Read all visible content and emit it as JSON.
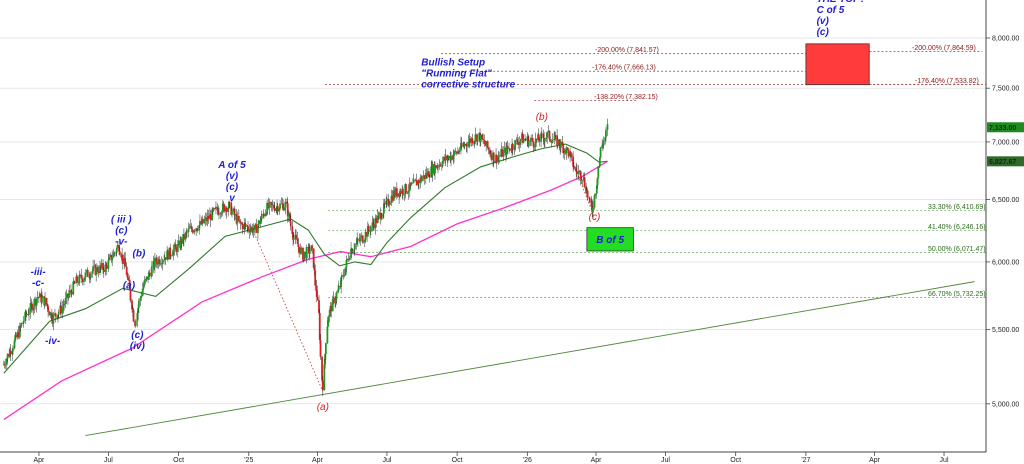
{
  "chart_data": {
    "type": "candlestick",
    "title": "",
    "xlabel": "",
    "ylabel": "",
    "ylim": [
      4700,
      8400
    ],
    "y_scale": "log",
    "x_tick_labels": [
      "Apr",
      "Jul",
      "Oct",
      "'25",
      "Apr",
      "Jul",
      "Oct",
      "'26",
      "Apr",
      "Jul",
      "Oct",
      "'27",
      "Apr",
      "Jul"
    ],
    "x_ticks": [
      {
        "label": "Apr",
        "date": "2024-04-01"
      },
      {
        "label": "Jul",
        "date": "2024-07-01"
      },
      {
        "label": "Oct",
        "date": "2024-10-01"
      },
      {
        "label": "'25",
        "date": "2025-01-01"
      },
      {
        "label": "Apr",
        "date": "2025-04-01"
      },
      {
        "label": "Jul",
        "date": "2025-07-01"
      },
      {
        "label": "Oct",
        "date": "2025-10-01"
      },
      {
        "label": "'26",
        "date": "2026-01-01"
      },
      {
        "label": "Apr",
        "date": "2026-04-01"
      },
      {
        "label": "Jul",
        "date": "2026-07-01"
      },
      {
        "label": "Oct",
        "date": "2026-10-01"
      },
      {
        "label": "'27",
        "date": "2027-01-01"
      },
      {
        "label": "Apr",
        "date": "2027-04-01"
      },
      {
        "label": "Jul",
        "date": "2027-07-01"
      }
    ],
    "y_ticks": [
      {
        "label": "5,000.00",
        "value": 5000
      },
      {
        "label": "5,500.00",
        "value": 5500
      },
      {
        "label": "6,000.00",
        "value": 6000
      },
      {
        "label": "6,500.00",
        "value": 6500
      },
      {
        "label": "7,000.00",
        "value": 7000
      },
      {
        "label": "7,500.00",
        "value": 7500
      },
      {
        "label": "8,000.00",
        "value": 8000
      }
    ],
    "price_path": [
      [
        "2024-02-15",
        5260
      ],
      [
        "2024-03-01",
        5420
      ],
      [
        "2024-03-15",
        5600
      ],
      [
        "2024-03-31",
        5740
      ],
      [
        "2024-04-10",
        5700
      ],
      [
        "2024-04-19",
        5580
      ],
      [
        "2024-05-01",
        5650
      ],
      [
        "2024-05-20",
        5850
      ],
      [
        "2024-06-10",
        5930
      ],
      [
        "2024-06-28",
        5960
      ],
      [
        "2024-07-15",
        6130
      ],
      [
        "2024-07-24",
        5950
      ],
      [
        "2024-08-05",
        5550
      ],
      [
        "2024-08-15",
        5800
      ],
      [
        "2024-09-01",
        6000
      ],
      [
        "2024-09-15",
        6050
      ],
      [
        "2024-10-01",
        6120
      ],
      [
        "2024-10-15",
        6250
      ],
      [
        "2024-11-01",
        6300
      ],
      [
        "2024-11-20",
        6410
      ],
      [
        "2024-12-06",
        6450
      ],
      [
        "2024-12-20",
        6300
      ],
      [
        "2025-01-10",
        6250
      ],
      [
        "2025-01-25",
        6430
      ],
      [
        "2025-02-19",
        6460
      ],
      [
        "2025-03-01",
        6200
      ],
      [
        "2025-03-13",
        6050
      ],
      [
        "2025-03-25",
        6100
      ],
      [
        "2025-04-03",
        5600
      ],
      [
        "2025-04-08",
        5080
      ],
      [
        "2025-04-15",
        5600
      ],
      [
        "2025-04-30",
        5800
      ],
      [
        "2025-05-15",
        6100
      ],
      [
        "2025-06-01",
        6200
      ],
      [
        "2025-06-20",
        6350
      ],
      [
        "2025-07-10",
        6550
      ],
      [
        "2025-08-01",
        6600
      ],
      [
        "2025-08-20",
        6700
      ],
      [
        "2025-09-10",
        6820
      ],
      [
        "2025-09-30",
        6900
      ],
      [
        "2025-10-15",
        7000
      ],
      [
        "2025-10-29",
        7060
      ],
      [
        "2025-11-20",
        6850
      ],
      [
        "2025-12-10",
        6950
      ],
      [
        "2025-12-24",
        7030
      ],
      [
        "2026-01-10",
        7000
      ],
      [
        "2026-01-28",
        7060
      ],
      [
        "2026-02-10",
        7000
      ],
      [
        "2026-02-25",
        6900
      ],
      [
        "2026-03-05",
        6750
      ],
      [
        "2026-03-15",
        6700
      ],
      [
        "2026-03-27",
        6400
      ],
      [
        "2026-04-01",
        6600
      ],
      [
        "2026-04-08",
        6950
      ],
      [
        "2026-04-14",
        7050
      ],
      [
        "2026-04-16",
        7133
      ]
    ],
    "moving_average_short": [
      [
        "2024-02-15",
        5200
      ],
      [
        "2024-04-15",
        5560
      ],
      [
        "2024-06-01",
        5650
      ],
      [
        "2024-07-20",
        5800
      ],
      [
        "2024-09-01",
        5740
      ],
      [
        "2024-10-15",
        5950
      ],
      [
        "2024-12-01",
        6200
      ],
      [
        "2025-01-20",
        6280
      ],
      [
        "2025-02-25",
        6340
      ],
      [
        "2025-03-20",
        6250
      ],
      [
        "2025-04-10",
        6060
      ],
      [
        "2025-04-30",
        5970
      ],
      [
        "2025-05-20",
        6000
      ],
      [
        "2025-06-10",
        5980
      ],
      [
        "2025-07-01",
        6150
      ],
      [
        "2025-08-01",
        6350
      ],
      [
        "2025-09-15",
        6600
      ],
      [
        "2025-11-01",
        6780
      ],
      [
        "2025-12-15",
        6870
      ],
      [
        "2026-01-20",
        6940
      ],
      [
        "2026-02-20",
        6980
      ],
      [
        "2026-03-20",
        6900
      ],
      [
        "2026-04-05",
        6820
      ],
      [
        "2026-04-16",
        6827.67
      ]
    ],
    "moving_average_long": [
      [
        "2024-02-15",
        4900
      ],
      [
        "2024-05-01",
        5150
      ],
      [
        "2024-08-01",
        5370
      ],
      [
        "2024-11-01",
        5700
      ],
      [
        "2025-01-20",
        5890
      ],
      [
        "2025-03-20",
        6020
      ],
      [
        "2025-05-01",
        6080
      ],
      [
        "2025-06-10",
        6040
      ],
      [
        "2025-08-01",
        6120
      ],
      [
        "2025-10-01",
        6300
      ],
      [
        "2025-12-01",
        6430
      ],
      [
        "2026-02-01",
        6580
      ],
      [
        "2026-03-15",
        6700
      ],
      [
        "2026-04-16",
        6827.67
      ]
    ],
    "trendline": [
      [
        "2024-06-01",
        4800
      ],
      [
        "2027-08-10",
        5850
      ]
    ],
    "dotted_connectors": [
      {
        "from": [
          "2025-01-10",
          6200
        ],
        "to": [
          "2025-04-08",
          5080
        ]
      },
      {
        "from": [
          "2026-02-25",
          6900
        ],
        "to": [
          "2026-03-27",
          6400
        ]
      }
    ],
    "current_price": {
      "label": "7,133.00",
      "value": 7133
    },
    "ma_value": {
      "label": "6,827.67",
      "value": 6827.67
    },
    "fib_levels_upper": [
      {
        "label": "-200.00% (7,841.57)",
        "value": 7841.57,
        "color": "#8b1a1a"
      },
      {
        "label": "-176.40% (7,666.13)",
        "value": 7666.13,
        "color": "#8b1a1a"
      },
      {
        "label": "-138.20% (7,382.15)",
        "value": 7382.15,
        "color": "#8b1a1a"
      },
      {
        "label": "-200.00% (7,864.59)",
        "value": 7864.59,
        "color": "#8b1a1a"
      },
      {
        "label": "-176.40% (7,533.82)",
        "value": 7533.82,
        "color": "#8b1a1a"
      }
    ],
    "fib_levels_lower": [
      {
        "label": "33.30% (6,410.69)",
        "value": 6410.69,
        "color": "#2e6b1e"
      },
      {
        "label": "41.40% (6,246.16)",
        "value": 6246.16,
        "color": "#2e6b1e"
      },
      {
        "label": "50.00% (6,071.47)",
        "value": 6071.47,
        "color": "#2e6b1e"
      },
      {
        "label": "66.70% (5,732.25)",
        "value": 5732.25,
        "color": "#2e6b1e"
      }
    ],
    "target_box": {
      "date_from": "2027-01-01",
      "date_to": "2027-03-25",
      "value_from": 7533.82,
      "value_to": 7940,
      "color": "#ff3b3b"
    },
    "b_box": {
      "label": "B of 5",
      "date_from": "2026-03-20",
      "date_to": "2026-05-20",
      "value_from": 6085,
      "value_to": 6270,
      "color": "#22dd22"
    },
    "wave_labels": [
      {
        "lines": [
          "-iii-",
          "-c-"
        ],
        "date": "2024-03-31",
        "value": 5900,
        "color": "#1f1fd0"
      },
      {
        "lines": [
          "-iv-"
        ],
        "date": "2024-04-19",
        "value": 5400,
        "color": "#1f1fd0"
      },
      {
        "lines": [
          "( iii )",
          "(c)",
          "-v-"
        ],
        "date": "2024-07-18",
        "value": 6310,
        "color": "#1f1fd0"
      },
      {
        "lines": [
          "(b)"
        ],
        "date": "2024-08-10",
        "value": 6040,
        "color": "#1f1fd0"
      },
      {
        "lines": [
          "(a)"
        ],
        "date": "2024-07-28",
        "value": 5800,
        "color": "#1f1fd0"
      },
      {
        "lines": [
          "(c)",
          "(iv)"
        ],
        "date": "2024-08-08",
        "value": 5440,
        "color": "#1f1fd0"
      },
      {
        "lines": [
          "A of 5",
          "(v)",
          "(c)",
          "v"
        ],
        "date": "2024-12-10",
        "value": 6770,
        "color": "#1f1fd0"
      },
      {
        "lines": [
          "(a)"
        ],
        "date": "2025-04-08",
        "value": 4960,
        "color": "#d01f1f"
      },
      {
        "lines": [
          "(b)"
        ],
        "date": "2026-01-20",
        "value": 7200,
        "color": "#d01f1f"
      },
      {
        "lines": [
          "(c)"
        ],
        "date": "2026-03-30",
        "value": 6330,
        "color": "#d01f1f"
      }
    ],
    "notes": [
      {
        "lines": [
          "Bullish Setup",
          "\"Running Flat\"",
          "corrective structure"
        ],
        "date": "2025-08-15",
        "value": 7720
      },
      {
        "lines": [
          "THE TOP?",
          "C of 5",
          "(v)",
          "(c)"
        ],
        "date": "2027-01-15",
        "value": 8380
      }
    ]
  }
}
